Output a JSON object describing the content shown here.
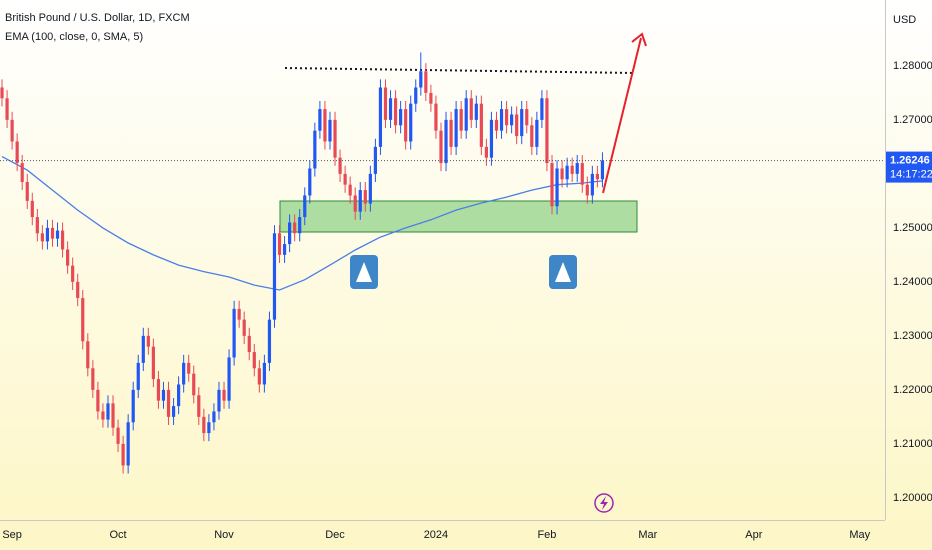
{
  "chart_data": {
    "type": "candlestick",
    "title": "British Pound / U.S. Dollar, 1D, FXCM",
    "indicator": "EMA (100, close, 0, SMA, 5)",
    "currency": "USD",
    "countdown": "14:17:22",
    "up_color": "#2157f3",
    "down_color": "#e84a55",
    "ema_color": "#4a7ee8",
    "grid": false,
    "xlim": [
      -2.4,
      173
    ],
    "ylim": [
      1.1959,
      1.2922
    ],
    "xticks": [
      {
        "value": 0,
        "label": "Sep"
      },
      {
        "value": 21,
        "label": "Oct"
      },
      {
        "value": 42,
        "label": "Nov"
      },
      {
        "value": 64,
        "label": "Dec"
      },
      {
        "value": 84,
        "label": "2024"
      },
      {
        "value": 106,
        "label": "Feb"
      },
      {
        "value": 126,
        "label": "Mar"
      },
      {
        "value": 147,
        "label": "Apr"
      },
      {
        "value": 168,
        "label": "May"
      }
    ],
    "yticks": [
      {
        "value": 1.2,
        "label": "1.20000"
      },
      {
        "value": 1.21,
        "label": "1.21000"
      },
      {
        "value": 1.22,
        "label": "1.22000"
      },
      {
        "value": 1.23,
        "label": "1.23000"
      },
      {
        "value": 1.24,
        "label": "1.24000"
      },
      {
        "value": 1.25,
        "label": "1.25000"
      },
      {
        "value": 1.27,
        "label": "1.27000"
      },
      {
        "value": 1.28,
        "label": "1.28000"
      }
    ],
    "x": [
      -2,
      -1,
      0,
      1,
      2,
      3,
      4,
      5,
      6,
      7,
      8,
      9,
      10,
      11,
      12,
      13,
      14,
      15,
      16,
      17,
      18,
      19,
      20,
      21,
      22,
      23,
      24,
      25,
      26,
      27,
      28,
      29,
      30,
      31,
      32,
      33,
      34,
      35,
      36,
      37,
      38,
      39,
      40,
      41,
      42,
      43,
      44,
      45,
      46,
      47,
      48,
      49,
      50,
      51,
      52,
      53,
      54,
      55,
      56,
      57,
      58,
      59,
      60,
      61,
      62,
      63,
      64,
      65,
      66,
      67,
      68,
      69,
      70,
      71,
      72,
      73,
      74,
      75,
      76,
      77,
      78,
      79,
      80,
      81,
      82,
      83,
      84,
      85,
      86,
      87,
      88,
      89,
      90,
      91,
      92,
      93,
      94,
      95,
      96,
      97,
      98,
      99,
      100,
      101,
      102,
      103,
      104,
      105,
      106,
      107,
      108,
      109,
      110,
      111,
      112,
      113,
      114,
      115,
      116,
      117
    ],
    "open": [
      1.276,
      1.274,
      1.27,
      1.266,
      1.262,
      1.2585,
      1.255,
      1.252,
      1.249,
      1.2475,
      1.25,
      1.248,
      1.2495,
      1.246,
      1.243,
      1.24,
      1.237,
      1.229,
      1.224,
      1.22,
      1.216,
      1.2145,
      1.2175,
      1.213,
      1.21,
      1.206,
      1.214,
      1.22,
      1.225,
      1.23,
      1.228,
      1.222,
      1.218,
      1.22,
      1.215,
      1.217,
      1.221,
      1.225,
      1.223,
      1.219,
      1.215,
      1.212,
      1.214,
      1.216,
      1.22,
      1.218,
      1.226,
      1.235,
      1.233,
      1.23,
      1.227,
      1.224,
      1.221,
      1.225,
      1.233,
      1.249,
      1.245,
      1.247,
      1.251,
      1.249,
      1.252,
      1.256,
      1.261,
      1.268,
      1.272,
      1.266,
      1.27,
      1.263,
      1.26,
      1.258,
      1.256,
      1.253,
      1.257,
      1.2545,
      1.26,
      1.265,
      1.276,
      1.27,
      1.274,
      1.269,
      1.272,
      1.266,
      1.273,
      1.276,
      1.279,
      1.275,
      1.273,
      1.268,
      1.262,
      1.27,
      1.265,
      1.272,
      1.268,
      1.274,
      1.27,
      1.273,
      1.265,
      1.263,
      1.27,
      1.268,
      1.272,
      1.269,
      1.271,
      1.267,
      1.272,
      1.269,
      1.265,
      1.27,
      1.274,
      1.262,
      1.254,
      1.261,
      1.259,
      1.2615,
      1.26,
      1.262,
      1.258,
      1.256,
      1.26,
      1.259
    ],
    "high": [
      1.2775,
      1.2755,
      1.2715,
      1.2675,
      1.2635,
      1.26,
      1.2565,
      1.2535,
      1.2505,
      1.2515,
      1.2515,
      1.251,
      1.251,
      1.2475,
      1.2445,
      1.2415,
      1.2385,
      1.2305,
      1.2255,
      1.2215,
      1.2175,
      1.219,
      1.219,
      1.2145,
      1.2115,
      1.2155,
      1.2215,
      1.2265,
      1.2315,
      1.2315,
      1.2295,
      1.2235,
      1.2215,
      1.2215,
      1.2185,
      1.2225,
      1.2265,
      1.2265,
      1.2245,
      1.2205,
      1.2165,
      1.2155,
      1.2175,
      1.2215,
      1.2215,
      1.2275,
      1.2365,
      1.2365,
      1.2345,
      1.2315,
      1.2285,
      1.2255,
      1.2265,
      1.2345,
      1.2505,
      1.2505,
      1.2485,
      1.2525,
      1.2525,
      1.2535,
      1.2575,
      1.2625,
      1.2695,
      1.2735,
      1.2735,
      1.2715,
      1.2715,
      1.2645,
      1.2615,
      1.2595,
      1.2575,
      1.2585,
      1.2585,
      1.2615,
      1.2665,
      1.2775,
      1.2775,
      1.2755,
      1.2755,
      1.2735,
      1.2735,
      1.2745,
      1.2775,
      1.2825,
      1.2805,
      1.2765,
      1.2745,
      1.2695,
      1.2715,
      1.2715,
      1.2735,
      1.2735,
      1.2755,
      1.2755,
      1.2745,
      1.2745,
      1.2665,
      1.2715,
      1.2715,
      1.2735,
      1.2735,
      1.2725,
      1.2725,
      1.2735,
      1.2735,
      1.2705,
      1.2715,
      1.2755,
      1.2755,
      1.2635,
      1.2625,
      1.2625,
      1.263,
      1.263,
      1.2635,
      1.2635,
      1.2595,
      1.2615,
      1.2615,
      1.264
    ],
    "low": [
      1.2725,
      1.2685,
      1.2645,
      1.2605,
      1.257,
      1.2535,
      1.2505,
      1.2475,
      1.246,
      1.246,
      1.2465,
      1.2465,
      1.2445,
      1.2415,
      1.2385,
      1.2355,
      1.2275,
      1.2225,
      1.2185,
      1.2145,
      1.213,
      1.213,
      1.2115,
      1.2085,
      1.2045,
      1.2045,
      1.2125,
      1.2185,
      1.2235,
      1.2265,
      1.2205,
      1.2165,
      1.2165,
      1.2135,
      1.2135,
      1.2155,
      1.2195,
      1.2215,
      1.2175,
      1.2135,
      1.2105,
      1.2105,
      1.2125,
      1.2145,
      1.2165,
      1.2165,
      1.2245,
      1.2315,
      1.2285,
      1.2255,
      1.2225,
      1.2195,
      1.2195,
      1.2235,
      1.2315,
      1.2435,
      1.2435,
      1.2455,
      1.2475,
      1.2475,
      1.2505,
      1.2545,
      1.2595,
      1.2665,
      1.2645,
      1.2645,
      1.2615,
      1.2585,
      1.2565,
      1.2545,
      1.2515,
      1.2515,
      1.253,
      1.253,
      1.2585,
      1.2635,
      1.2685,
      1.2685,
      1.2675,
      1.2675,
      1.2645,
      1.2645,
      1.2715,
      1.2745,
      1.2735,
      1.2715,
      1.2665,
      1.2605,
      1.2605,
      1.2635,
      1.2635,
      1.2665,
      1.2665,
      1.2685,
      1.2685,
      1.2635,
      1.2615,
      1.2615,
      1.2665,
      1.2665,
      1.2675,
      1.2675,
      1.2655,
      1.2655,
      1.2675,
      1.2635,
      1.2635,
      1.2685,
      1.2605,
      1.2525,
      1.2525,
      1.2575,
      1.2575,
      1.2585,
      1.2585,
      1.2565,
      1.2545,
      1.2545,
      1.2575,
      1.2575
    ],
    "close": [
      1.274,
      1.27,
      1.266,
      1.262,
      1.2585,
      1.255,
      1.252,
      1.249,
      1.2475,
      1.25,
      1.248,
      1.2495,
      1.246,
      1.243,
      1.24,
      1.237,
      1.229,
      1.224,
      1.22,
      1.216,
      1.2145,
      1.2175,
      1.213,
      1.21,
      1.206,
      1.214,
      1.22,
      1.225,
      1.23,
      1.228,
      1.222,
      1.218,
      1.22,
      1.215,
      1.217,
      1.221,
      1.225,
      1.223,
      1.219,
      1.215,
      1.212,
      1.214,
      1.216,
      1.22,
      1.218,
      1.226,
      1.235,
      1.233,
      1.23,
      1.227,
      1.224,
      1.221,
      1.225,
      1.233,
      1.249,
      1.245,
      1.247,
      1.251,
      1.249,
      1.252,
      1.256,
      1.261,
      1.268,
      1.272,
      1.266,
      1.27,
      1.263,
      1.26,
      1.258,
      1.256,
      1.253,
      1.257,
      1.2545,
      1.26,
      1.265,
      1.276,
      1.27,
      1.274,
      1.269,
      1.272,
      1.266,
      1.273,
      1.276,
      1.279,
      1.275,
      1.273,
      1.268,
      1.262,
      1.27,
      1.265,
      1.272,
      1.268,
      1.274,
      1.27,
      1.273,
      1.265,
      1.263,
      1.27,
      1.268,
      1.272,
      1.269,
      1.271,
      1.267,
      1.272,
      1.269,
      1.265,
      1.27,
      1.274,
      1.262,
      1.254,
      1.261,
      1.259,
      1.2615,
      1.26,
      1.262,
      1.258,
      1.256,
      1.26,
      1.259,
      1.26246
    ],
    "ema": {
      "x": [
        -2,
        3,
        8,
        13,
        18,
        23,
        28,
        33,
        38,
        43,
        48,
        53,
        58,
        63,
        68,
        73,
        78,
        83,
        88,
        93,
        98,
        103,
        108,
        113,
        117
      ],
      "values": [
        1.2632,
        1.2607,
        1.257,
        1.2533,
        1.25,
        1.2472,
        1.245,
        1.2431,
        1.2419,
        1.2409,
        1.2394,
        1.2385,
        1.2404,
        1.2431,
        1.2459,
        1.2483,
        1.25,
        1.2515,
        1.2533,
        1.2546,
        1.2557,
        1.257,
        1.258,
        1.2583,
        1.2587
      ]
    }
  }
}
